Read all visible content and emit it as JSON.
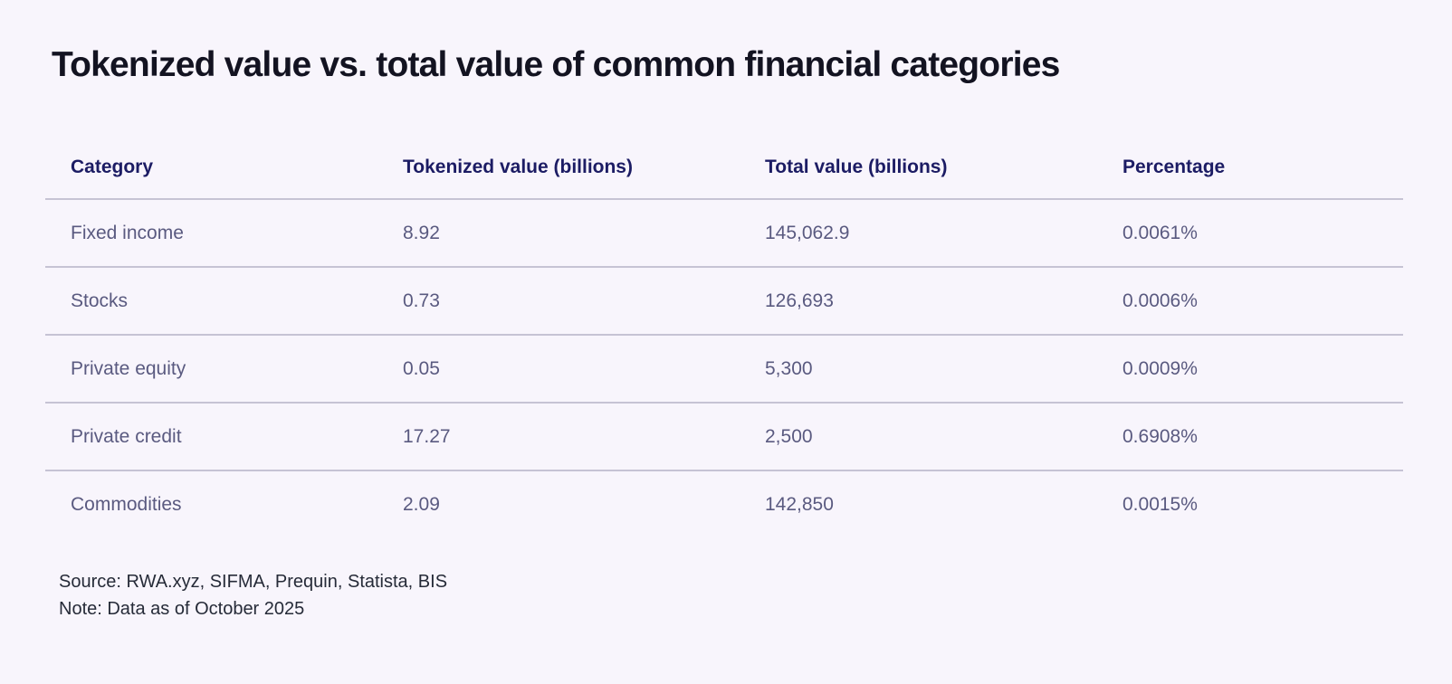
{
  "title": "Tokenized value vs. total value of common financial categories",
  "table": {
    "headers": [
      "Category",
      "Tokenized value (billions)",
      "Total value (billions)",
      "Percentage"
    ],
    "rows": [
      {
        "category": "Fixed income",
        "tokenized": "8.92",
        "total": "145,062.9",
        "percentage": "0.0061%"
      },
      {
        "category": "Stocks",
        "tokenized": "0.73",
        "total": "126,693",
        "percentage": "0.0006%"
      },
      {
        "category": "Private equity",
        "tokenized": "0.05",
        "total": "5,300",
        "percentage": "0.0009%"
      },
      {
        "category": "Private credit",
        "tokenized": "17.27",
        "total": "2,500",
        "percentage": "0.6908%"
      },
      {
        "category": "Commodities",
        "tokenized": "2.09",
        "total": "142,850",
        "percentage": "0.0015%"
      }
    ]
  },
  "notes": {
    "source": "Source: RWA.xyz, SIFMA, Prequin, Statista, BIS",
    "note": "Note: Data as of October 2025"
  },
  "colors": {
    "background": "#f8f5fc",
    "title_text": "#131321",
    "header_text": "#1c1c64",
    "body_text": "#5a5a80",
    "divider": "#c6c3d4",
    "note_text": "#262b38"
  },
  "chart_data": {
    "type": "table",
    "title": "Tokenized value vs. total value of common financial categories",
    "columns": [
      "Category",
      "Tokenized value (billions)",
      "Total value (billions)",
      "Percentage"
    ],
    "rows": [
      [
        "Fixed income",
        8.92,
        145062.9,
        "0.0061%"
      ],
      [
        "Stocks",
        0.73,
        126693,
        "0.0006%"
      ],
      [
        "Private equity",
        0.05,
        5300,
        "0.0009%"
      ],
      [
        "Private credit",
        17.27,
        2500,
        "0.6908%"
      ],
      [
        "Commodities",
        2.09,
        142850,
        "0.0015%"
      ]
    ],
    "source": "Source: RWA.xyz, SIFMA, Prequin, Statista, BIS",
    "note": "Note: Data as of October 2025"
  }
}
